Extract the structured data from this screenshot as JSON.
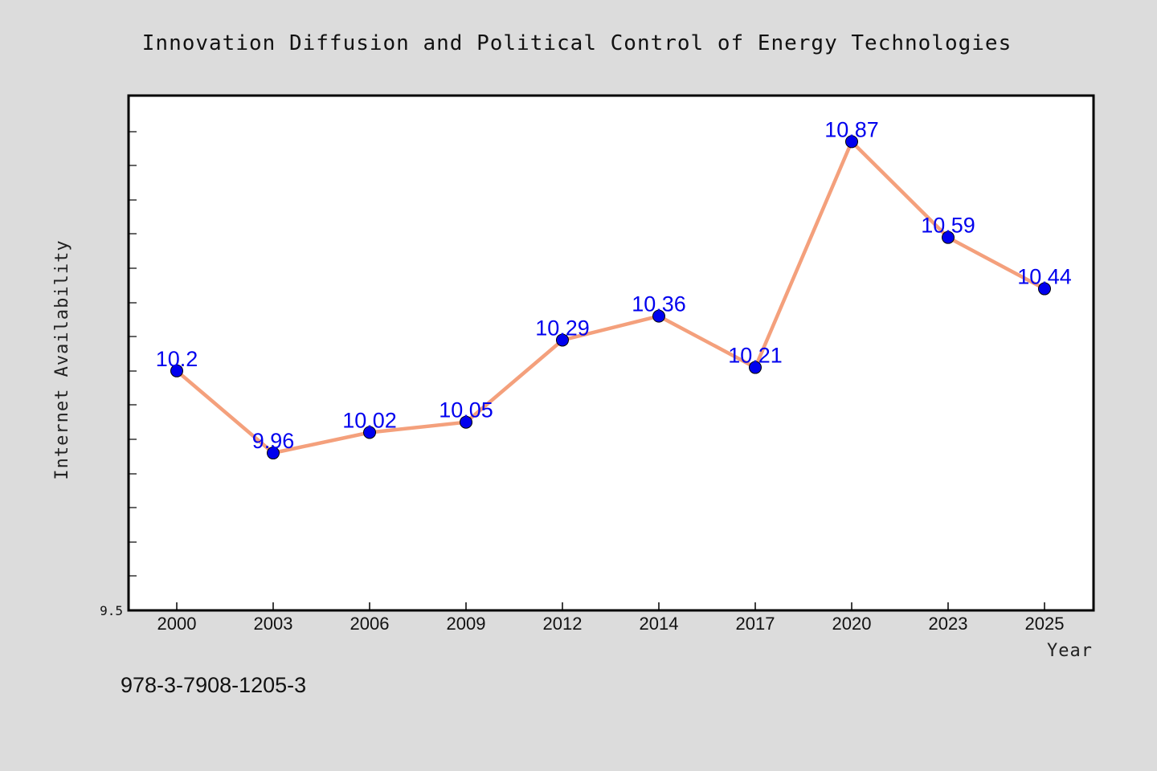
{
  "chart_data": {
    "type": "line",
    "title": "Innovation Diffusion and Political Control of Energy Technologies",
    "xlabel": "Year",
    "ylabel": "Internet Availability",
    "categories": [
      "2000",
      "2003",
      "2006",
      "2009",
      "2012",
      "2014",
      "2017",
      "2020",
      "2023",
      "2025"
    ],
    "series": [
      {
        "values": [
          10.2,
          9.96,
          10.02,
          10.05,
          10.29,
          10.36,
          10.21,
          10.87,
          10.59,
          10.44
        ],
        "labels": [
          "10.2",
          "9.96",
          "10.02",
          "10.05",
          "10.29",
          "10.36",
          "10.21",
          "10.87",
          "10.59",
          "10.44"
        ],
        "line_color": "#f4a07c",
        "marker_color": "#0000ee"
      }
    ],
    "ylim": [
      9.5,
      11.0
    ],
    "yticks_labeled": [
      "9.5"
    ],
    "grid": false,
    "legend": "none"
  },
  "footer": {
    "isbn": "978-3-7908-1205-3"
  },
  "colors": {
    "background": "#dcdcdc",
    "plot_background": "#ffffff",
    "line": "#f4a07c",
    "marker": "#0000ee",
    "data_label": "#0000ee"
  }
}
